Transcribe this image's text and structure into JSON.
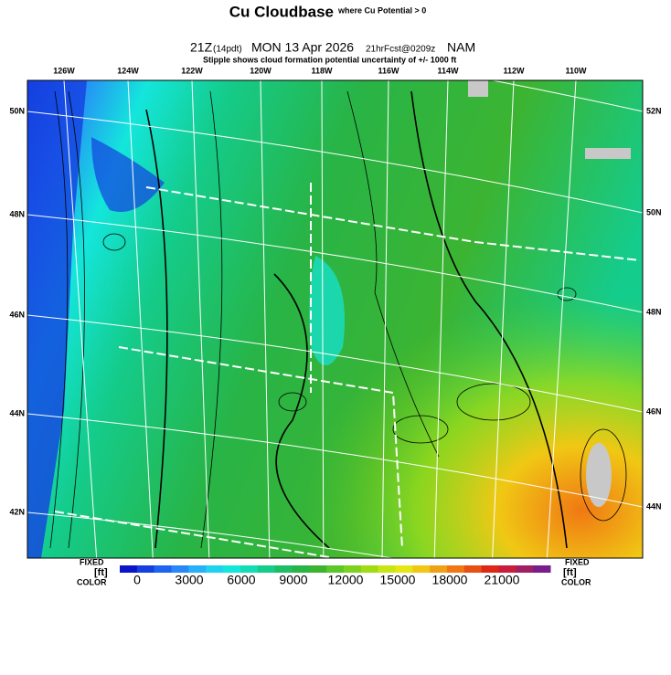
{
  "header": {
    "title": "Cu Cloudbase",
    "title_note": "where Cu Potential > 0",
    "valid_time": "21Z",
    "local_time": "(14pdt)",
    "date": "MON 13 Apr 2026",
    "forecast": "21hrFcst@0209z",
    "model": "NAM",
    "subtitle": "Stipple shows cloud formation potential uncertainty of +/-  1000 ft"
  },
  "map": {
    "lon_labels": [
      "126W",
      "124W",
      "122W",
      "120W",
      "118W",
      "116W",
      "114W",
      "112W",
      "110W"
    ],
    "lat_labels_left": [
      "50N",
      "48N",
      "46N",
      "44N",
      "42N"
    ],
    "lat_labels_right": [
      "52N",
      "50N",
      "48N",
      "46N",
      "44N"
    ]
  },
  "legend": {
    "left": {
      "line1": "FIXED",
      "line2": "[ft]",
      "line3": "COLOR"
    },
    "right": {
      "line1": "FIXED",
      "line2": "[ft]",
      "line3": "COLOR"
    },
    "ticks": [
      0,
      3000,
      6000,
      9000,
      12000,
      15000,
      18000,
      21000
    ],
    "colors": [
      "#0a14c8",
      "#1440e0",
      "#1e64f0",
      "#2888f8",
      "#28b0f8",
      "#1ed2f0",
      "#14e6dc",
      "#14dcb4",
      "#14cc8c",
      "#1ebe64",
      "#28b446",
      "#3cb432",
      "#5ac828",
      "#7cd21e",
      "#a0dc14",
      "#c8e614",
      "#e6e614",
      "#f0c814",
      "#f0a014",
      "#f07814",
      "#e65014",
      "#dc2814",
      "#c81e3c",
      "#a01e64",
      "#781e8c"
    ]
  }
}
